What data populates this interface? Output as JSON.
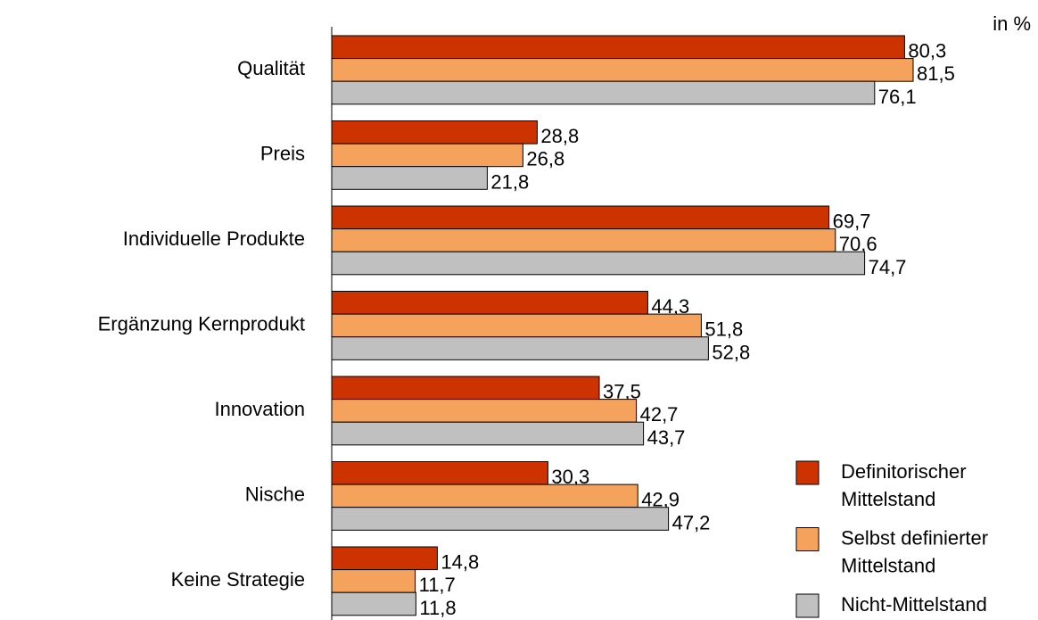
{
  "chart_data": {
    "type": "barh",
    "unit_label": "in %",
    "categories": [
      "Qualität",
      "Preis",
      "Individuelle Produkte",
      "Ergänzung Kernprodukt",
      "Innovation",
      "Nische",
      "Keine Strategie"
    ],
    "series": [
      {
        "name": "Definitorischer Mittelstand",
        "color": "#cc3300",
        "values": [
          80.3,
          28.8,
          69.7,
          44.3,
          37.5,
          30.3,
          14.8
        ],
        "value_labels": [
          "80,3",
          "28,8",
          "69,7",
          "44,3",
          "37,5",
          "30,3",
          "14,8"
        ]
      },
      {
        "name": "Selbst definierter Mittelstand",
        "color": "#f5a25d",
        "values": [
          81.5,
          26.8,
          70.6,
          51.8,
          42.7,
          42.9,
          11.7
        ],
        "value_labels": [
          "81,5",
          "26,8",
          "70,6",
          "51,8",
          "42,7",
          "42,9",
          "11,7"
        ]
      },
      {
        "name": "Nicht-Mittelstand",
        "color": "#c0c0c0",
        "values": [
          76.1,
          21.8,
          74.7,
          52.8,
          43.7,
          47.2,
          11.8
        ],
        "value_labels": [
          "76,1",
          "21,8",
          "74,7",
          "52,8",
          "43,7",
          "47,2",
          "11,8"
        ]
      }
    ],
    "xlim": [
      0,
      100
    ],
    "legend": "lower right"
  }
}
